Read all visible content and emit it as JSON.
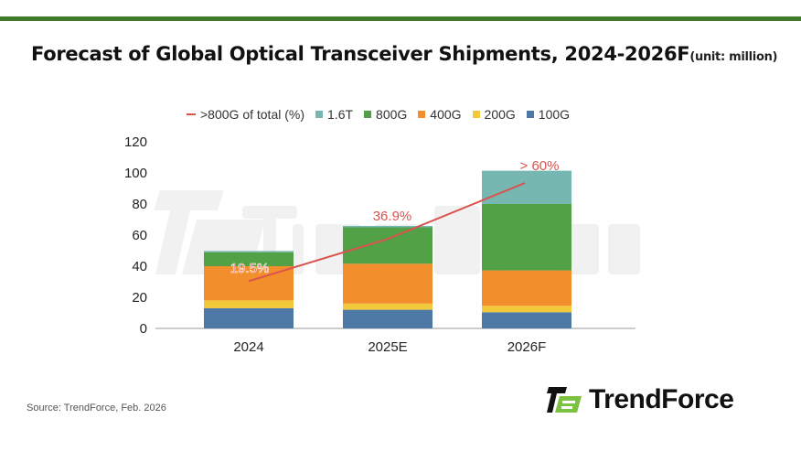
{
  "header": {
    "title": "Forecast of Global Optical Transceiver Shipments, 2024-2026F",
    "unit": "(unit: million)"
  },
  "footer": {
    "source": "Source: TrendForce, Feb. 2026",
    "logo_text": "TrendForce"
  },
  "colors": {
    "topbar": "#3f7a2a",
    "line": "#d9534f"
  },
  "chart_data": {
    "type": "bar",
    "stacked": true,
    "title": "Forecast of Global Optical Transceiver Shipments, 2024-2026F",
    "ylabel": "unit: million",
    "categories": [
      "2024",
      "2025E",
      "2026F"
    ],
    "ylim": [
      0,
      120
    ],
    "yticks": [
      "0",
      "20",
      "40",
      "60",
      "80",
      "100",
      "120"
    ],
    "series": [
      {
        "name": "100G",
        "color": "#4e78a6",
        "values": [
          13,
          12,
          10.4
        ]
      },
      {
        "name": "200G",
        "color": "#f1c93b",
        "values": [
          5,
          4,
          4.1
        ]
      },
      {
        "name": "400G",
        "color": "#f28e2c",
        "values": [
          22,
          25.6,
          22.8
        ]
      },
      {
        "name": "800G",
        "color": "#53a146",
        "values": [
          9,
          23.4,
          42.7
        ]
      },
      {
        "name": "1.6T",
        "color": "#76b7b2",
        "values": [
          0.8,
          0.9,
          21.4
        ]
      }
    ],
    "line_series": {
      "name": ">800G of total (%)",
      "color": "#d9534f",
      "values": [
        19.5,
        36.9,
        60
      ],
      "labels": [
        "19.5%",
        "36.9%",
        "> 60%"
      ],
      "secondary_axis_max": 77
    },
    "legend_position": "top",
    "legend_order": [
      ">800G of total (%)",
      "1.6T",
      "800G",
      "400G",
      "200G",
      "100G"
    ],
    "grid": false
  }
}
